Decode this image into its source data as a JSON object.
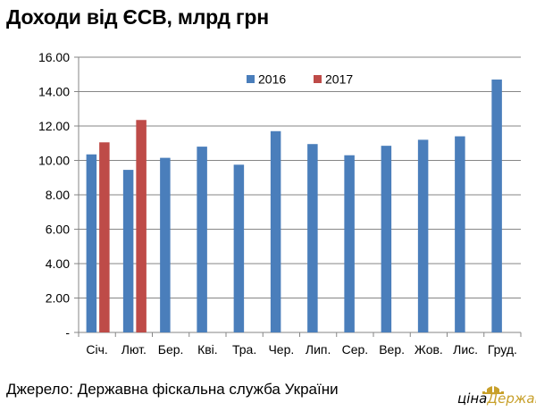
{
  "source_note": "Джерело: Державна фіскальна служба України",
  "logo": {
    "text_part1": "ціна",
    "text_part2": "Держави",
    "color": "#c8a02a"
  },
  "chart_data": {
    "type": "bar",
    "title": "Доходи від ЄСВ, млрд грн",
    "xlabel": "",
    "ylabel": "",
    "categories": [
      "Січ.",
      "Лют.",
      "Бер.",
      "Кві.",
      "Тра.",
      "Чер.",
      "Лип.",
      "Сер.",
      "Вер.",
      "Жов.",
      "Лис.",
      "Груд."
    ],
    "series": [
      {
        "name": "2016",
        "color": "#4a7ebb",
        "values": [
          10.35,
          9.45,
          10.15,
          10.8,
          9.75,
          11.7,
          10.95,
          10.3,
          10.85,
          11.2,
          11.4,
          14.7
        ]
      },
      {
        "name": "2017",
        "color": "#be4b48",
        "values": [
          11.05,
          12.35,
          null,
          null,
          null,
          null,
          null,
          null,
          null,
          null,
          null,
          null
        ]
      }
    ],
    "ylim": [
      0,
      16
    ],
    "yticks": [
      "-",
      "2.00",
      "4.00",
      "6.00",
      "8.00",
      "10.00",
      "12.00",
      "14.00",
      "16.00"
    ],
    "grid": true,
    "legend_position": "top-center"
  }
}
